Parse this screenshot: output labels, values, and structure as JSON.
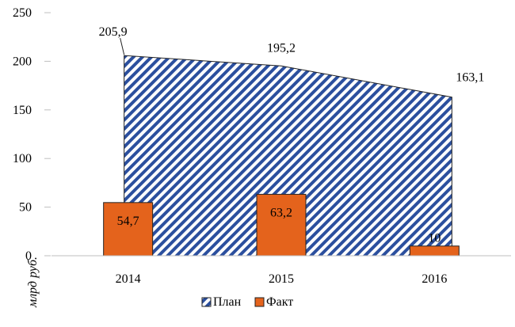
{
  "chart_data": {
    "type": "bar+area",
    "categories": [
      "2014",
      "2015",
      "2016"
    ],
    "series": [
      {
        "name": "План",
        "kind": "area",
        "pattern": "diagonal-hatch",
        "color": "#2b4f9e",
        "values": [
          205.9,
          195.2,
          163.1
        ],
        "labels": [
          "205,9",
          "195,2",
          "163,1"
        ]
      },
      {
        "name": "Факт",
        "kind": "bar",
        "color": "#e4631c",
        "values": [
          54.7,
          63.2,
          10
        ],
        "labels": [
          "54,7",
          "63,2",
          "10"
        ]
      }
    ],
    "ylabel": "млрд руб.",
    "ylim": [
      0,
      250
    ],
    "yticks": [
      "0",
      "50",
      "100",
      "150",
      "200",
      "250"
    ],
    "legend": "bottom"
  }
}
